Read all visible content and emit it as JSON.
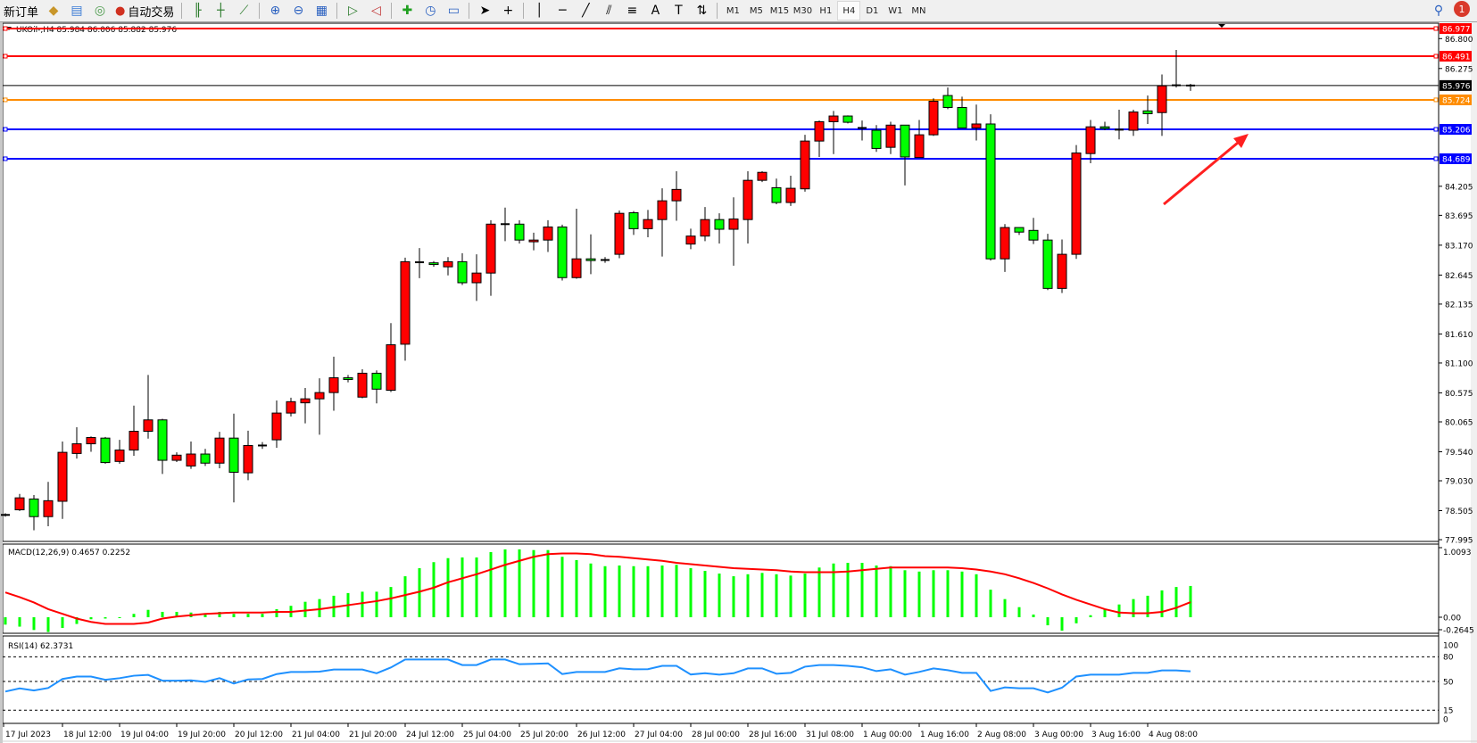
{
  "toolbar": {
    "new_order_label": "新订单",
    "auto_trading_label": "自动交易",
    "timeframes": [
      "M1",
      "M5",
      "M15",
      "M30",
      "H1",
      "H4",
      "D1",
      "W1",
      "MN"
    ],
    "active_timeframe": "H4",
    "notification_count": "1",
    "icons": [
      "bar-chart-icon",
      "candlestick-chart-icon",
      "line-chart-icon",
      "zoom-in-icon",
      "zoom-out-icon",
      "tile-windows-icon",
      "auto-scroll-icon",
      "chart-shift-icon",
      "indicators-icon",
      "periods-icon",
      "templates-icon",
      "cursor-icon",
      "crosshair-icon",
      "vertical-line-icon",
      "horizontal-line-icon",
      "trendline-icon",
      "equidistant-channel-icon",
      "fibonacci-icon",
      "text-icon",
      "text-label-icon",
      "arrows-icon"
    ]
  },
  "chart": {
    "symbol_info": "UKOil-,H4  85.984 86.006 85.882 85.976",
    "colors": {
      "bull": "#ff0000",
      "bear": "#00ff00",
      "macd_hist": "#00ff00",
      "signal": "#ff0000",
      "rsi": "#1e90ff",
      "red_line": "#ff0000",
      "orange_line": "#ff8c00",
      "blue_line": "#0000ff"
    }
  },
  "chart_data": [
    {
      "type": "candlestick",
      "title": "UKOil-,H4",
      "ohlc_order": [
        "open",
        "high",
        "low",
        "close"
      ],
      "ylim": [
        77.995,
        86.977
      ],
      "y_ticks": [
        "86.800",
        "86.275",
        "84.205",
        "83.695",
        "83.170",
        "82.645",
        "82.135",
        "81.610",
        "81.100",
        "80.575",
        "80.065",
        "79.540",
        "79.030",
        "78.505",
        "77.995"
      ],
      "x_tick_labels": [
        "17 Jul 2023",
        "18 Jul 12:00",
        "19 Jul 04:00",
        "19 Jul 20:00",
        "20 Jul 12:00",
        "21 Jul 04:00",
        "21 Jul 20:00",
        "24 Jul 12:00",
        "25 Jul 04:00",
        "25 Jul 20:00",
        "26 Jul 12:00",
        "27 Jul 04:00",
        "28 Jul 00:00",
        "28 Jul 16:00",
        "31 Jul 08:00",
        "1 Aug 00:00",
        "1 Aug 16:00",
        "2 Aug 08:00",
        "3 Aug 00:00",
        "3 Aug 16:00",
        "4 Aug 08:00"
      ],
      "x_tick_every_bars": 4,
      "horizontal_lines": [
        {
          "price": "86.977",
          "color": "#ff0000"
        },
        {
          "price": "86.491",
          "color": "#ff0000"
        },
        {
          "price": "85.976",
          "color": "#000000",
          "kind": "bid"
        },
        {
          "price": "85.724",
          "color": "#ff8c00"
        },
        {
          "price": "85.206",
          "color": "#0000ff"
        },
        {
          "price": "84.689",
          "color": "#0000ff"
        }
      ],
      "annotation": {
        "type": "arrow",
        "color": "#ff2020",
        "direction": "up-right"
      },
      "candles": [
        [
          78.43,
          78.46,
          78.4,
          78.43
        ],
        [
          78.52,
          78.8,
          78.5,
          78.73
        ],
        [
          78.71,
          78.78,
          78.16,
          78.4
        ],
        [
          78.4,
          79.01,
          78.23,
          78.68
        ],
        [
          78.67,
          79.72,
          78.36,
          79.53
        ],
        [
          79.51,
          79.97,
          79.42,
          79.68
        ],
        [
          79.68,
          79.81,
          79.54,
          79.79
        ],
        [
          79.78,
          79.8,
          79.33,
          79.35
        ],
        [
          79.37,
          79.75,
          79.33,
          79.57
        ],
        [
          79.57,
          80.35,
          79.47,
          79.9
        ],
        [
          79.9,
          80.89,
          79.77,
          80.1
        ],
        [
          80.1,
          80.12,
          79.15,
          79.39
        ],
        [
          79.39,
          79.53,
          79.36,
          79.48
        ],
        [
          79.29,
          79.72,
          79.24,
          79.5
        ],
        [
          79.5,
          79.59,
          79.29,
          79.34
        ],
        [
          79.34,
          79.89,
          79.25,
          79.78
        ],
        [
          79.78,
          80.21,
          78.65,
          79.18
        ],
        [
          79.17,
          79.91,
          79.04,
          79.65
        ],
        [
          79.65,
          79.71,
          79.59,
          79.65
        ],
        [
          79.75,
          80.44,
          79.61,
          80.22
        ],
        [
          80.22,
          80.49,
          80.16,
          80.42
        ],
        [
          80.4,
          80.66,
          80.04,
          80.47
        ],
        [
          80.47,
          80.83,
          79.84,
          80.58
        ],
        [
          80.58,
          81.21,
          80.26,
          80.84
        ],
        [
          80.84,
          80.89,
          80.76,
          80.81
        ],
        [
          80.5,
          80.99,
          80.48,
          80.92
        ],
        [
          80.92,
          80.97,
          80.39,
          80.64
        ],
        [
          80.62,
          81.8,
          80.59,
          81.42
        ],
        [
          81.43,
          82.95,
          81.14,
          82.88
        ],
        [
          82.87,
          83.12,
          82.59,
          82.87
        ],
        [
          82.86,
          82.89,
          82.79,
          82.83
        ],
        [
          82.79,
          82.96,
          82.64,
          82.88
        ],
        [
          82.88,
          83.03,
          82.47,
          82.51
        ],
        [
          82.51,
          83.01,
          82.19,
          82.68
        ],
        [
          82.68,
          83.61,
          82.28,
          83.54
        ],
        [
          83.54,
          83.83,
          83.24,
          83.54
        ],
        [
          83.54,
          83.61,
          83.2,
          83.26
        ],
        [
          83.23,
          83.39,
          83.08,
          83.26
        ],
        [
          83.26,
          83.61,
          83.05,
          83.49
        ],
        [
          83.49,
          83.53,
          82.55,
          82.6
        ],
        [
          82.6,
          83.81,
          82.58,
          82.93
        ],
        [
          82.93,
          83.36,
          82.66,
          82.9
        ],
        [
          82.91,
          82.96,
          82.86,
          82.91
        ],
        [
          83.01,
          83.78,
          82.94,
          83.73
        ],
        [
          83.74,
          83.77,
          83.35,
          83.46
        ],
        [
          83.46,
          83.79,
          83.31,
          83.62
        ],
        [
          83.62,
          84.17,
          82.97,
          83.95
        ],
        [
          83.95,
          84.47,
          83.6,
          84.15
        ],
        [
          83.19,
          83.46,
          83.1,
          83.33
        ],
        [
          83.33,
          83.84,
          83.24,
          83.62
        ],
        [
          83.62,
          83.73,
          83.2,
          83.45
        ],
        [
          83.45,
          84.01,
          82.81,
          83.63
        ],
        [
          83.62,
          84.47,
          83.2,
          84.31
        ],
        [
          84.31,
          84.47,
          84.28,
          84.45
        ],
        [
          84.18,
          84.34,
          83.89,
          83.92
        ],
        [
          83.92,
          84.39,
          83.86,
          84.17
        ],
        [
          84.16,
          85.11,
          84.11,
          85.0
        ],
        [
          85.0,
          85.36,
          84.72,
          85.34
        ],
        [
          85.34,
          85.53,
          84.77,
          85.44
        ],
        [
          85.44,
          85.45,
          85.31,
          85.33
        ],
        [
          85.23,
          85.36,
          85.01,
          85.23
        ],
        [
          85.19,
          85.28,
          84.81,
          84.87
        ],
        [
          84.89,
          85.34,
          84.77,
          85.28
        ],
        [
          85.28,
          85.28,
          84.22,
          84.72
        ],
        [
          84.71,
          85.37,
          84.71,
          85.11
        ],
        [
          85.11,
          85.75,
          85.09,
          85.7
        ],
        [
          85.8,
          85.94,
          85.56,
          85.59
        ],
        [
          85.59,
          85.78,
          85.23,
          85.23
        ],
        [
          85.23,
          85.64,
          85.01,
          85.3
        ],
        [
          85.3,
          85.47,
          82.9,
          82.93
        ],
        [
          82.93,
          83.54,
          82.7,
          83.48
        ],
        [
          83.48,
          83.48,
          83.35,
          83.4
        ],
        [
          83.43,
          83.65,
          83.19,
          83.26
        ],
        [
          83.26,
          83.37,
          82.38,
          82.41
        ],
        [
          82.41,
          83.27,
          82.33,
          83.01
        ],
        [
          83.01,
          84.93,
          82.93,
          84.79
        ],
        [
          84.78,
          85.37,
          84.61,
          85.25
        ],
        [
          85.25,
          85.34,
          85.19,
          85.22
        ],
        [
          85.21,
          85.55,
          85.03,
          85.2
        ],
        [
          85.19,
          85.55,
          85.09,
          85.51
        ],
        [
          85.53,
          85.8,
          85.3,
          85.48
        ],
        [
          85.5,
          86.17,
          85.09,
          85.97
        ],
        [
          85.98,
          86.6,
          85.94,
          85.98
        ],
        [
          85.984,
          86.006,
          85.882,
          85.976
        ]
      ]
    },
    {
      "type": "bar",
      "title": "MACD(12,26,9) 0.4657 0.2252",
      "ylim": [
        -0.2645,
        1.0093
      ],
      "y_ticks": [
        "1.0093",
        "0.00",
        "-0.2645"
      ],
      "histogram": [
        -0.11,
        -0.14,
        -0.19,
        -0.22,
        -0.16,
        -0.1,
        -0.03,
        -0.02,
        -0.005,
        0.05,
        0.11,
        0.08,
        0.08,
        0.07,
        0.05,
        0.08,
        0.05,
        0.05,
        0.05,
        0.12,
        0.17,
        0.23,
        0.27,
        0.32,
        0.36,
        0.38,
        0.38,
        0.45,
        0.61,
        0.73,
        0.82,
        0.88,
        0.89,
        0.89,
        0.97,
        1.01,
        1.01,
        1.0,
        1.0,
        0.9,
        0.85,
        0.8,
        0.76,
        0.77,
        0.76,
        0.76,
        0.77,
        0.78,
        0.73,
        0.69,
        0.65,
        0.61,
        0.64,
        0.66,
        0.64,
        0.62,
        0.65,
        0.74,
        0.8,
        0.81,
        0.81,
        0.77,
        0.76,
        0.7,
        0.68,
        0.7,
        0.7,
        0.68,
        0.64,
        0.41,
        0.27,
        0.15,
        0.04,
        -0.12,
        -0.2,
        -0.09,
        0.03,
        0.12,
        0.19,
        0.27,
        0.32,
        0.4,
        0.45,
        0.4657
      ],
      "signal": [
        0.37,
        0.3,
        0.22,
        0.12,
        0.05,
        -0.02,
        -0.07,
        -0.1,
        -0.1,
        -0.1,
        -0.08,
        -0.02,
        0.01,
        0.03,
        0.05,
        0.06,
        0.07,
        0.07,
        0.07,
        0.08,
        0.08,
        0.1,
        0.12,
        0.15,
        0.18,
        0.21,
        0.24,
        0.28,
        0.33,
        0.38,
        0.44,
        0.52,
        0.58,
        0.64,
        0.71,
        0.78,
        0.84,
        0.9,
        0.94,
        0.95,
        0.95,
        0.94,
        0.91,
        0.9,
        0.88,
        0.86,
        0.84,
        0.81,
        0.79,
        0.77,
        0.75,
        0.73,
        0.72,
        0.71,
        0.7,
        0.68,
        0.67,
        0.67,
        0.67,
        0.68,
        0.7,
        0.72,
        0.74,
        0.74,
        0.74,
        0.74,
        0.74,
        0.73,
        0.71,
        0.68,
        0.64,
        0.58,
        0.51,
        0.43,
        0.34,
        0.26,
        0.19,
        0.12,
        0.07,
        0.06,
        0.06,
        0.08,
        0.14,
        0.2252
      ]
    },
    {
      "type": "line",
      "title": "RSI(14) 62.3731",
      "ylim": [
        0,
        100
      ],
      "y_ticks": [
        "100",
        "80",
        "50",
        "15",
        "0"
      ],
      "levels": [
        80,
        50,
        15
      ],
      "values": [
        37.7,
        41.5,
        39,
        42,
        53,
        56,
        56,
        52,
        54,
        57,
        58,
        51,
        51,
        51.4,
        49.5,
        54,
        47.5,
        52.5,
        53,
        59,
        61.6,
        61.6,
        62,
        64.5,
        64.5,
        64.5,
        60,
        67,
        76.7,
        76.7,
        76.7,
        76.7,
        70,
        70,
        76.7,
        76.7,
        71,
        71.5,
        72,
        59,
        61.6,
        61.6,
        61.6,
        66,
        64.8,
        65,
        69,
        69,
        58.5,
        60,
        58.3,
        60,
        65.9,
        65.9,
        59.4,
        60.5,
        68,
        70,
        70,
        69,
        67.3,
        62.6,
        64.8,
        58.3,
        61.6,
        65.9,
        63.7,
        60.5,
        60.5,
        38.4,
        42.8,
        41.7,
        41.7,
        36.6,
        42.4,
        56,
        58.3,
        58.3,
        58.3,
        60.5,
        60.5,
        63.4,
        63.4,
        62.3731
      ]
    }
  ]
}
